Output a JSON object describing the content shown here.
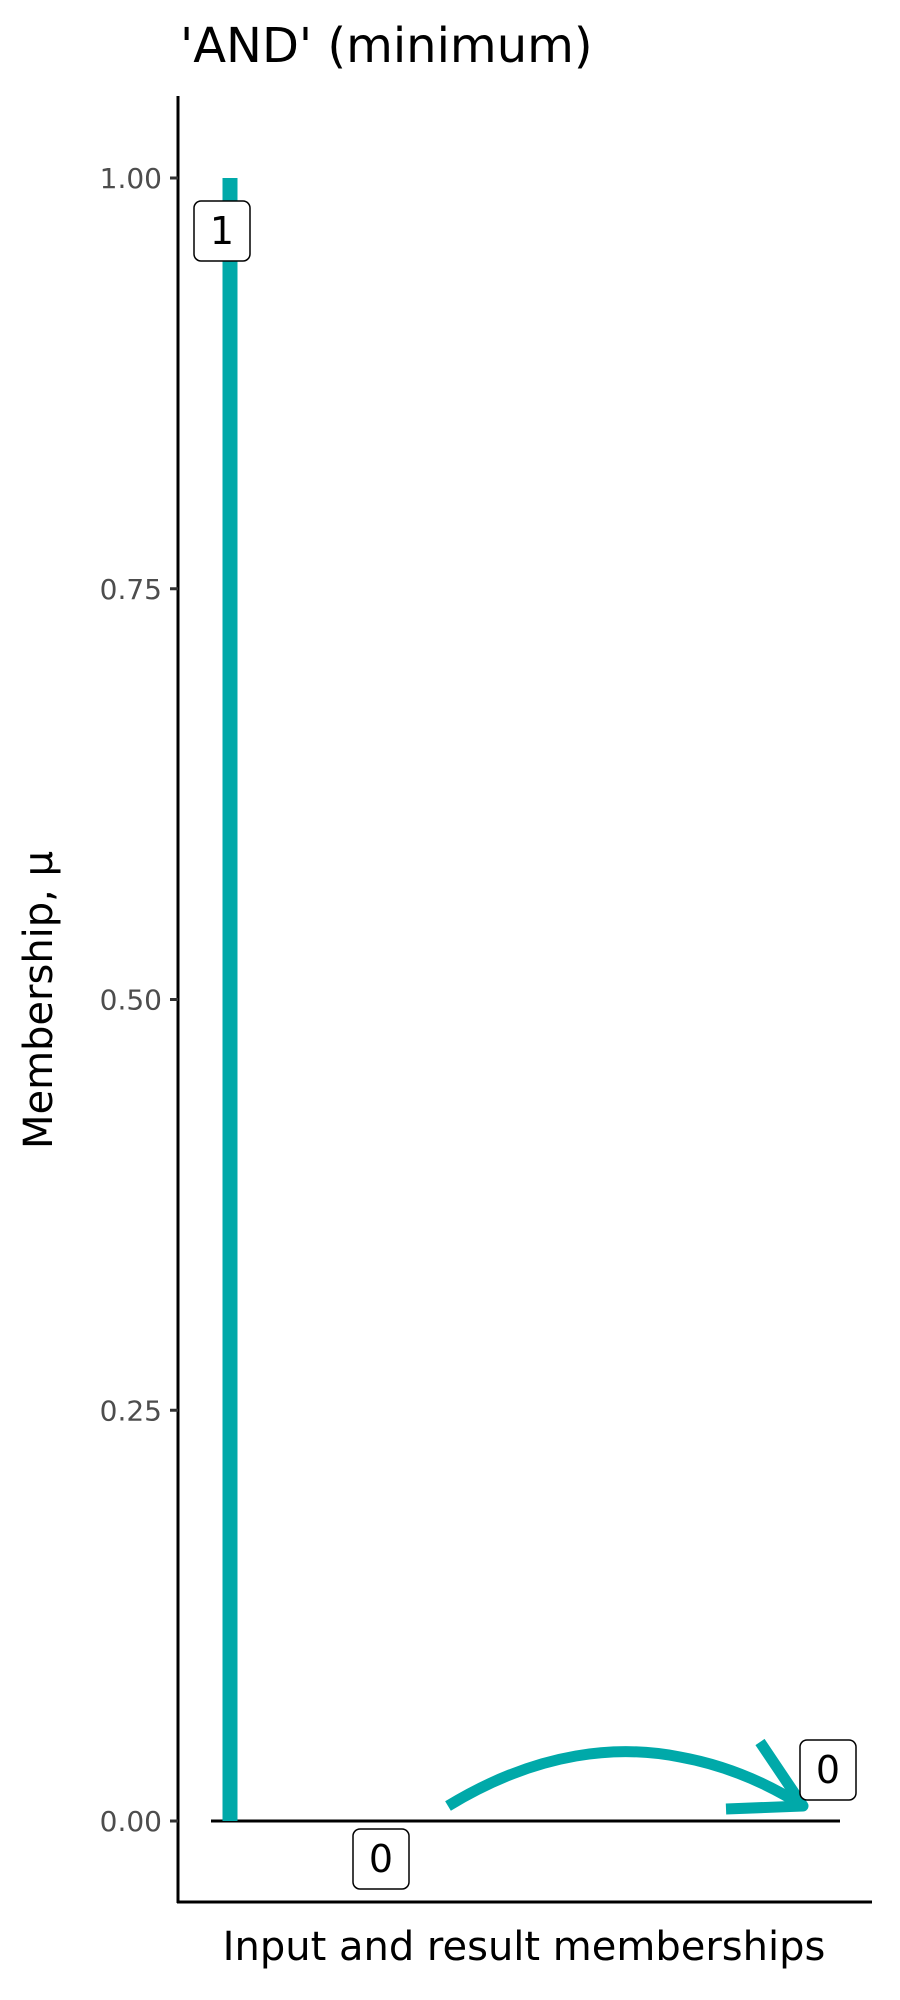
{
  "chart_data": {
    "type": "bar",
    "title": "'AND' (minimum)",
    "xlabel": "Input and result memberships",
    "ylabel": "Membership, μ",
    "ylim": [
      -0.05,
      1.05
    ],
    "yticks": [
      "0.00",
      "0.25",
      "0.50",
      "0.75",
      "1.00"
    ],
    "ytick_values": [
      0,
      0.25,
      0.5,
      0.75,
      1
    ],
    "inputs": [
      {
        "value": 1,
        "label": "1"
      },
      {
        "value": 0,
        "label": "0"
      }
    ],
    "result": {
      "value": 0,
      "label": "0"
    },
    "grid": false,
    "color": "#00A9A9"
  }
}
